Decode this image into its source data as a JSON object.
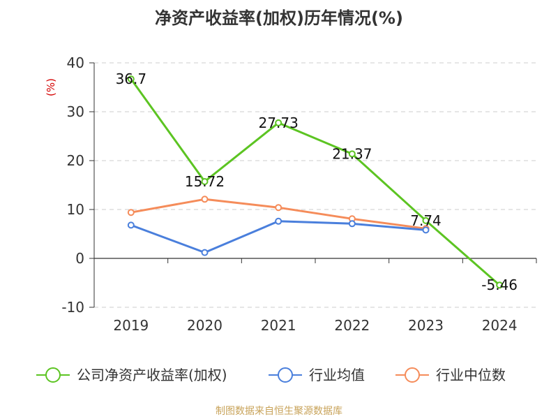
{
  "title": "净资产收益率(加权)历年情况(%)",
  "footer": "制图数据来自恒生聚源数据库",
  "chart_data": {
    "type": "line",
    "categories": [
      "2019",
      "2020",
      "2021",
      "2022",
      "2023",
      "2024"
    ],
    "ylim": [
      -10,
      40
    ],
    "yticks": [
      -10,
      0,
      10,
      20,
      30,
      40
    ],
    "ylabel": "(%)",
    "series": [
      {
        "name": "公司净资产收益率(加权)",
        "color": "#5cc422",
        "values": [
          36.7,
          15.72,
          27.73,
          21.37,
          7.74,
          -5.46
        ],
        "labels": [
          "36.7",
          "15.72",
          "27.73",
          "21.37",
          "7.74",
          "-5.46"
        ]
      },
      {
        "name": "行业均值",
        "color": "#4a7fdc",
        "values": [
          6.8,
          1.2,
          7.6,
          7.1,
          5.8,
          null
        ]
      },
      {
        "name": "行业中位数",
        "color": "#f58c5a",
        "values": [
          9.4,
          12.1,
          10.4,
          8.1,
          6.1,
          null
        ]
      }
    ],
    "grid": true,
    "legend": "bottom"
  }
}
